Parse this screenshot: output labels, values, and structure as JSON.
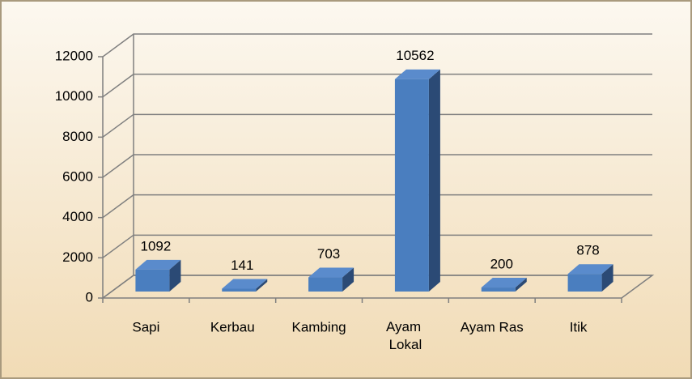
{
  "chart_data": {
    "type": "bar3d",
    "categories": [
      "Sapi",
      "Kerbau",
      "Kambing",
      "Ayam Lokal",
      "Ayam Ras",
      "Itik"
    ],
    "values": [
      1092,
      141,
      703,
      10562,
      200,
      878
    ],
    "color": "#4a7ebf",
    "ylim": [
      0,
      12000
    ],
    "yticks": [
      0,
      2000,
      4000,
      6000,
      8000,
      10000,
      12000
    ],
    "grid": true
  }
}
